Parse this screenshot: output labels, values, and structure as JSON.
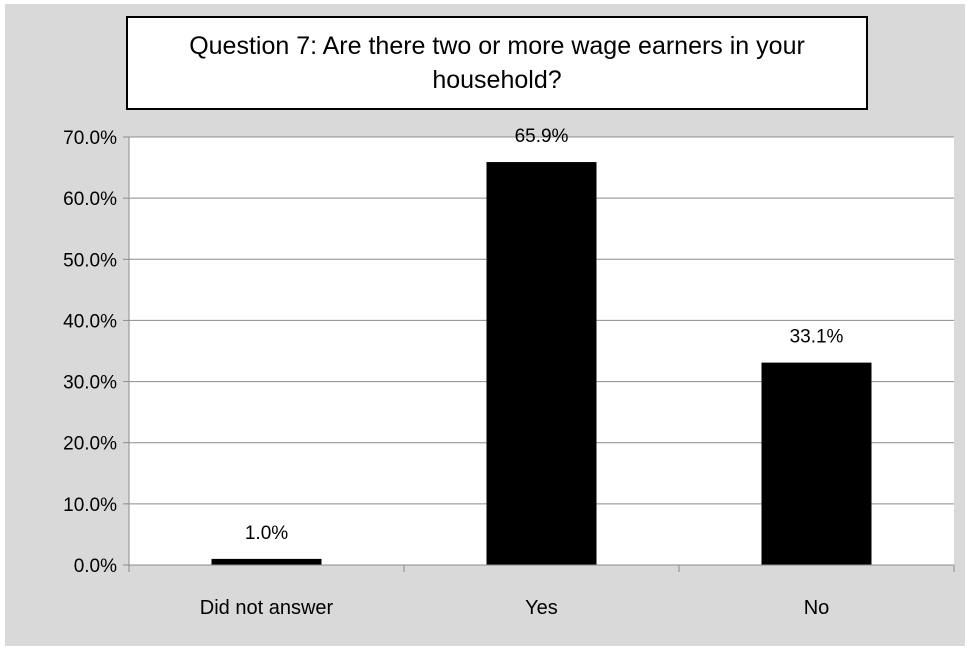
{
  "chart_data": {
    "type": "bar",
    "title": "Question 7: Are there two or more wage earners in your household?",
    "categories": [
      "Did not answer",
      "Yes",
      "No"
    ],
    "values": [
      1.0,
      65.9,
      33.1
    ],
    "data_labels": [
      "1.0%",
      "65.9%",
      "33.1%"
    ],
    "ylim": [
      0,
      70
    ],
    "yticks": [
      0,
      10,
      20,
      30,
      40,
      50,
      60,
      70
    ],
    "ytick_labels": [
      "0.0%",
      "10.0%",
      "20.0%",
      "30.0%",
      "40.0%",
      "50.0%",
      "60.0%",
      "70.0%"
    ],
    "xlabel": "",
    "ylabel": "",
    "grid": true,
    "legend": "none",
    "bar_color": "#000000",
    "background_color": "#d9d9d9",
    "plot_background_color": "#ffffff"
  }
}
